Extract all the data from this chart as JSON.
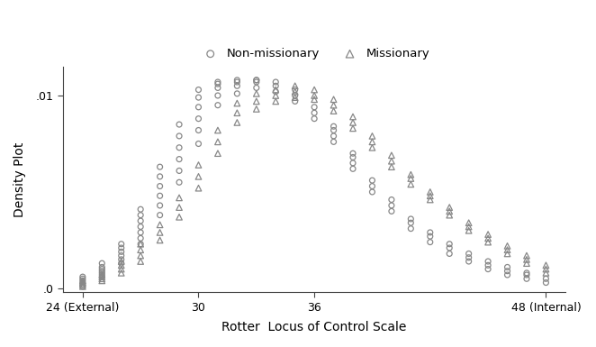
{
  "title": "",
  "xlabel": "Rotter  Locus of Control Scale",
  "ylabel": "Density Plot",
  "xlim": [
    23,
    49
  ],
  "ylim": [
    -0.0002,
    0.0115
  ],
  "xticks": [
    24,
    30,
    36,
    48
  ],
  "xticklabels": [
    "24 (External)",
    "30",
    "36",
    "48 (Internal)"
  ],
  "yticks": [
    0.0,
    0.01
  ],
  "yticklabels": [
    ".0",
    ".01"
  ],
  "marker_color": "#888888",
  "background_color": "#ffffff",
  "legend_labels": [
    "Non-missionary",
    "Missionary"
  ],
  "nonmissionary_x": [
    24,
    24,
    24,
    24,
    24,
    24,
    25,
    25,
    25,
    25,
    25,
    25,
    25,
    26,
    26,
    26,
    26,
    26,
    26,
    27,
    27,
    27,
    27,
    27,
    27,
    27,
    28,
    28,
    28,
    28,
    28,
    28,
    29,
    29,
    29,
    29,
    29,
    29,
    30,
    30,
    30,
    30,
    30,
    30,
    31,
    31,
    31,
    31,
    31,
    32,
    32,
    32,
    32,
    33,
    33,
    33,
    33,
    34,
    34,
    34,
    35,
    35,
    35,
    36,
    36,
    36,
    37,
    37,
    37,
    37,
    38,
    38,
    38,
    38,
    39,
    39,
    39,
    40,
    40,
    40,
    41,
    41,
    41,
    42,
    42,
    42,
    43,
    43,
    43,
    44,
    44,
    44,
    45,
    45,
    45,
    46,
    46,
    46,
    47,
    47,
    47,
    48,
    48
  ],
  "nonmissionary_y": [
    0.0001,
    0.0002,
    0.0003,
    0.0004,
    0.0005,
    0.0006,
    0.0006,
    0.0007,
    0.0008,
    0.0009,
    0.001,
    0.0011,
    0.0013,
    0.0013,
    0.0015,
    0.0017,
    0.0019,
    0.0021,
    0.0023,
    0.0023,
    0.0026,
    0.0029,
    0.0032,
    0.0035,
    0.0038,
    0.0041,
    0.0038,
    0.0043,
    0.0048,
    0.0053,
    0.0058,
    0.0063,
    0.0055,
    0.0061,
    0.0067,
    0.0073,
    0.0079,
    0.0085,
    0.0075,
    0.0082,
    0.0088,
    0.0094,
    0.0099,
    0.0103,
    0.0095,
    0.01,
    0.0104,
    0.0106,
    0.0107,
    0.0101,
    0.0105,
    0.0107,
    0.0108,
    0.0104,
    0.0107,
    0.0108,
    0.0108,
    0.0102,
    0.0105,
    0.0107,
    0.0097,
    0.01,
    0.0103,
    0.0088,
    0.0091,
    0.0094,
    0.0076,
    0.0079,
    0.0082,
    0.0084,
    0.0062,
    0.0065,
    0.0068,
    0.007,
    0.005,
    0.0053,
    0.0056,
    0.004,
    0.0043,
    0.0046,
    0.0031,
    0.0034,
    0.0036,
    0.0024,
    0.0027,
    0.0029,
    0.0018,
    0.0021,
    0.0023,
    0.0014,
    0.0016,
    0.0018,
    0.001,
    0.0012,
    0.0014,
    0.0007,
    0.0009,
    0.0011,
    0.0005,
    0.0007,
    0.0008,
    0.0003,
    0.0005
  ],
  "missionary_x": [
    24,
    24,
    24,
    24,
    25,
    25,
    25,
    25,
    26,
    26,
    26,
    26,
    27,
    27,
    27,
    27,
    28,
    28,
    28,
    29,
    29,
    29,
    30,
    30,
    30,
    31,
    31,
    31,
    32,
    32,
    32,
    33,
    33,
    33,
    34,
    34,
    34,
    35,
    35,
    35,
    36,
    36,
    36,
    37,
    37,
    37,
    38,
    38,
    38,
    39,
    39,
    39,
    40,
    40,
    40,
    41,
    41,
    41,
    42,
    42,
    42,
    43,
    43,
    43,
    44,
    44,
    44,
    45,
    45,
    45,
    46,
    46,
    46,
    47,
    47,
    47,
    48,
    48,
    48
  ],
  "missionary_y": [
    0.0001,
    0.0002,
    0.0003,
    0.0004,
    0.0004,
    0.0005,
    0.0006,
    0.0007,
    0.0008,
    0.001,
    0.0012,
    0.0014,
    0.0014,
    0.0017,
    0.002,
    0.0023,
    0.0025,
    0.0029,
    0.0033,
    0.0037,
    0.0042,
    0.0047,
    0.0052,
    0.0058,
    0.0064,
    0.007,
    0.0076,
    0.0082,
    0.0086,
    0.0091,
    0.0096,
    0.0093,
    0.0097,
    0.0101,
    0.0097,
    0.01,
    0.0103,
    0.0099,
    0.0102,
    0.0105,
    0.0098,
    0.01,
    0.0103,
    0.0092,
    0.0095,
    0.0098,
    0.0083,
    0.0086,
    0.0089,
    0.0073,
    0.0076,
    0.0079,
    0.0063,
    0.0066,
    0.0069,
    0.0054,
    0.0057,
    0.0059,
    0.0046,
    0.0048,
    0.005,
    0.0038,
    0.004,
    0.0042,
    0.003,
    0.0032,
    0.0034,
    0.0024,
    0.0026,
    0.0028,
    0.0018,
    0.002,
    0.0022,
    0.0013,
    0.0015,
    0.0017,
    0.0008,
    0.001,
    0.0012
  ]
}
